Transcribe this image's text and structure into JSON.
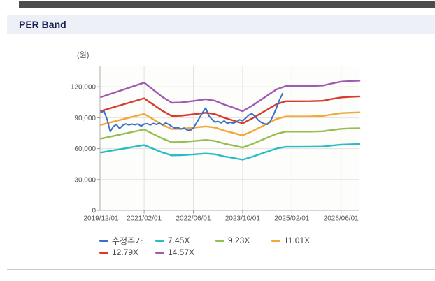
{
  "header": {
    "title": "PER Band"
  },
  "chart_data": {
    "type": "line",
    "title": "PER Band",
    "unit_label": "(원)",
    "ylabel": "원",
    "ylim": [
      0,
      140000
    ],
    "y_ticks": [
      0,
      30000,
      60000,
      90000,
      120000
    ],
    "grid": true,
    "legend_position": "bottom",
    "x_encoding": "months after first tick date 2019/12/01",
    "x_range_months": [
      0,
      84
    ],
    "x_ticks": [
      {
        "m": 0,
        "label": "2019/12/01"
      },
      {
        "m": 14,
        "label": "2021/02/01"
      },
      {
        "m": 30,
        "label": "2022/06/01"
      },
      {
        "m": 46,
        "label": "2023/10/01"
      },
      {
        "m": 62,
        "label": "2025/02/01"
      },
      {
        "m": 78,
        "label": "2026/06/01"
      }
    ],
    "series": [
      {
        "id": "price-line",
        "label": "수정주가",
        "color": "#3a70c8",
        "width": 2,
        "x": [
          0,
          1,
          2,
          3,
          4,
          5,
          6,
          7,
          8,
          9,
          10,
          11,
          12,
          13,
          14,
          15,
          16,
          17,
          18,
          19,
          20,
          21,
          22,
          23,
          24,
          25,
          26,
          27,
          28,
          29,
          30,
          31,
          32,
          33,
          34,
          35,
          36,
          37,
          38,
          39,
          40,
          41,
          42,
          43,
          44,
          45,
          46,
          47,
          48,
          49,
          50,
          51,
          52,
          53,
          54,
          55,
          56,
          57,
          58,
          59
        ],
        "values": [
          95500,
          96200,
          88000,
          76500,
          81500,
          83500,
          79500,
          82500,
          84000,
          83000,
          83800,
          83200,
          84000,
          81800,
          83800,
          84200,
          83000,
          84500,
          83500,
          84800,
          83000,
          85000,
          83500,
          81500,
          80000,
          80500,
          79000,
          80000,
          78000,
          77800,
          80000,
          85000,
          90000,
          95000,
          99500,
          92000,
          88500,
          85800,
          86500,
          85000,
          87000,
          84500,
          85500,
          84800,
          86000,
          88000,
          87000,
          89500,
          92500,
          94000,
          91500,
          88000,
          85500,
          84200,
          83500,
          86500,
          92500,
          99500,
          107500,
          113500
        ]
      },
      {
        "id": "band-7-45x",
        "label": "7.45X",
        "color": "#28bcc6",
        "width": 2.4,
        "x": [
          0,
          4,
          8,
          11,
          14,
          17,
          20,
          23,
          26,
          30,
          34,
          37,
          40,
          43,
          46,
          49,
          53,
          57,
          60,
          64,
          68,
          72,
          75,
          78,
          81,
          84
        ],
        "values": [
          56200,
          58300,
          60300,
          61900,
          63400,
          59800,
          56200,
          53400,
          53600,
          54400,
          55200,
          54500,
          52400,
          50900,
          49200,
          51900,
          56000,
          60100,
          61700,
          61700,
          61800,
          62000,
          63000,
          63900,
          64200,
          64400
        ]
      },
      {
        "id": "band-9-23x",
        "label": "9.23X",
        "color": "#94be50",
        "width": 2.4,
        "x": [
          0,
          4,
          8,
          11,
          14,
          17,
          20,
          23,
          26,
          30,
          34,
          37,
          40,
          43,
          46,
          49,
          53,
          57,
          60,
          64,
          68,
          72,
          75,
          78,
          81,
          84
        ],
        "values": [
          69700,
          72200,
          74800,
          76700,
          78600,
          74100,
          69700,
          66200,
          66400,
          67300,
          68400,
          67500,
          64900,
          63000,
          61000,
          64300,
          69400,
          74400,
          76500,
          76500,
          76500,
          76800,
          78000,
          79200,
          79600,
          79800
        ]
      },
      {
        "id": "band-11-01x",
        "label": "11.01X",
        "color": "#f2a738",
        "width": 2.4,
        "x": [
          0,
          4,
          8,
          11,
          14,
          17,
          20,
          23,
          26,
          30,
          34,
          37,
          40,
          43,
          46,
          49,
          53,
          57,
          60,
          64,
          68,
          72,
          75,
          78,
          81,
          84
        ],
        "values": [
          83100,
          86100,
          89200,
          91400,
          93700,
          88400,
          83100,
          79000,
          79200,
          80300,
          81600,
          80500,
          77500,
          75200,
          72800,
          76700,
          82700,
          88800,
          91200,
          91200,
          91300,
          91600,
          93100,
          94500,
          94900,
          95200
        ]
      },
      {
        "id": "band-12-79x",
        "label": "12.79X",
        "color": "#d93a2e",
        "width": 2.4,
        "x": [
          0,
          4,
          8,
          11,
          14,
          17,
          20,
          23,
          26,
          30,
          34,
          37,
          40,
          43,
          46,
          49,
          53,
          57,
          60,
          64,
          68,
          72,
          75,
          78,
          81,
          84
        ],
        "values": [
          96500,
          100100,
          103600,
          106200,
          108900,
          102700,
          96600,
          91700,
          92000,
          93300,
          94800,
          93500,
          90000,
          87300,
          84500,
          89100,
          96100,
          103100,
          106000,
          106000,
          106100,
          106400,
          108200,
          109700,
          110300,
          110600
        ]
      },
      {
        "id": "band-14-57x",
        "label": "14.57X",
        "color": "#a15ab2",
        "width": 2.4,
        "x": [
          0,
          4,
          8,
          11,
          14,
          17,
          20,
          23,
          26,
          30,
          34,
          37,
          40,
          43,
          46,
          49,
          53,
          57,
          60,
          64,
          68,
          72,
          75,
          78,
          81,
          84
        ],
        "values": [
          110000,
          114000,
          118000,
          121000,
          124000,
          117000,
          110000,
          104500,
          104800,
          106300,
          108000,
          106500,
          102800,
          99800,
          96300,
          101500,
          109500,
          117500,
          120700,
          120700,
          120800,
          121200,
          123200,
          125000,
          125600,
          126000
        ]
      }
    ]
  }
}
